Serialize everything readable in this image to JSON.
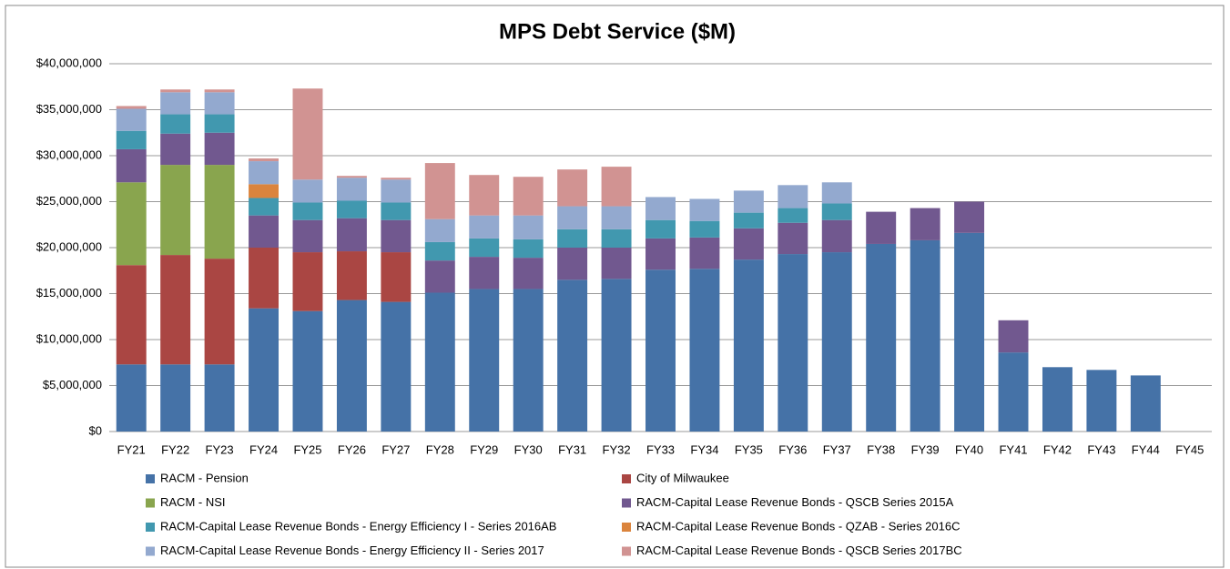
{
  "chart_data": {
    "type": "stacked_bar",
    "title": "MPS Debt Service ($M)",
    "categories": [
      "FY21",
      "FY22",
      "FY23",
      "FY24",
      "FY25",
      "FY26",
      "FY27",
      "FY28",
      "FY29",
      "FY30",
      "FY31",
      "FY32",
      "FY33",
      "FY34",
      "FY35",
      "FY36",
      "FY37",
      "FY38",
      "FY39",
      "FY40",
      "FY41",
      "FY42",
      "FY43",
      "FY44",
      "FY45"
    ],
    "series": [
      {
        "name": "RACM - Pension",
        "color": "#4572a7",
        "values": [
          7300000,
          7300000,
          7300000,
          13400000,
          13100000,
          14300000,
          14100000,
          15100000,
          15500000,
          15500000,
          16500000,
          16600000,
          17600000,
          17700000,
          18700000,
          19300000,
          19500000,
          20400000,
          20800000,
          21600000,
          8600000,
          7000000,
          6700000,
          6100000,
          0
        ]
      },
      {
        "name": "City of Milwaukee",
        "color": "#aa4643",
        "values": [
          10800000,
          11900000,
          11500000,
          6600000,
          6400000,
          5300000,
          5400000,
          0,
          0,
          0,
          0,
          0,
          0,
          0,
          0,
          0,
          0,
          0,
          0,
          0,
          0,
          0,
          0,
          0,
          0
        ]
      },
      {
        "name": "RACM - NSI",
        "color": "#89a54e",
        "values": [
          9000000,
          9800000,
          10200000,
          0,
          0,
          0,
          0,
          0,
          0,
          0,
          0,
          0,
          0,
          0,
          0,
          0,
          0,
          0,
          0,
          0,
          0,
          0,
          0,
          0,
          0
        ]
      },
      {
        "name": "RACM-Capital Lease Revenue Bonds - QSCB Series 2015A",
        "color": "#71588f",
        "values": [
          3600000,
          3400000,
          3500000,
          3500000,
          3500000,
          3600000,
          3500000,
          3500000,
          3500000,
          3400000,
          3500000,
          3400000,
          3400000,
          3400000,
          3400000,
          3400000,
          3500000,
          3500000,
          3500000,
          3400000,
          3500000,
          0,
          0,
          0,
          0
        ]
      },
      {
        "name": "RACM-Capital Lease Revenue Bonds - Energy Efficiency I - Series 2016AB",
        "color": "#4198af",
        "values": [
          2000000,
          2100000,
          2000000,
          1900000,
          1900000,
          1900000,
          1900000,
          2000000,
          2000000,
          2000000,
          2000000,
          2000000,
          2000000,
          1800000,
          1700000,
          1600000,
          1800000,
          0,
          0,
          0,
          0,
          0,
          0,
          0,
          0
        ]
      },
      {
        "name": "RACM-Capital Lease Revenue Bonds - QZAB - Series 2016C",
        "color": "#db843d",
        "values": [
          0,
          0,
          0,
          1500000,
          0,
          0,
          0,
          0,
          0,
          0,
          0,
          0,
          0,
          0,
          0,
          0,
          0,
          0,
          0,
          0,
          0,
          0,
          0,
          0,
          0
        ]
      },
      {
        "name": "RACM-Capital Lease Revenue Bonds - Energy Efficiency II - Series 2017",
        "color": "#93a9cf",
        "values": [
          2400000,
          2400000,
          2400000,
          2500000,
          2500000,
          2500000,
          2500000,
          2500000,
          2500000,
          2600000,
          2500000,
          2500000,
          2500000,
          2400000,
          2400000,
          2500000,
          2300000,
          0,
          0,
          0,
          0,
          0,
          0,
          0,
          0
        ]
      },
      {
        "name": "RACM-Capital Lease Revenue Bonds - QSCB Series 2017BC",
        "color": "#d19392",
        "values": [
          300000,
          300000,
          300000,
          300000,
          9900000,
          200000,
          200000,
          6100000,
          4400000,
          4200000,
          4000000,
          4300000,
          0,
          0,
          0,
          0,
          0,
          0,
          0,
          0,
          0,
          0,
          0,
          0,
          0
        ]
      }
    ],
    "ylim": [
      0,
      40000000
    ],
    "yticks": [
      {
        "value": 0,
        "label": "$0"
      },
      {
        "value": 5000000,
        "label": "$5,000,000"
      },
      {
        "value": 10000000,
        "label": "$10,000,000"
      },
      {
        "value": 15000000,
        "label": "$15,000,000"
      },
      {
        "value": 20000000,
        "label": "$20,000,000"
      },
      {
        "value": 25000000,
        "label": "$25,000,000"
      },
      {
        "value": 30000000,
        "label": "$30,000,000"
      },
      {
        "value": 35000000,
        "label": "$35,000,000"
      },
      {
        "value": 40000000,
        "label": "$40,000,000"
      }
    ],
    "grid": true
  }
}
